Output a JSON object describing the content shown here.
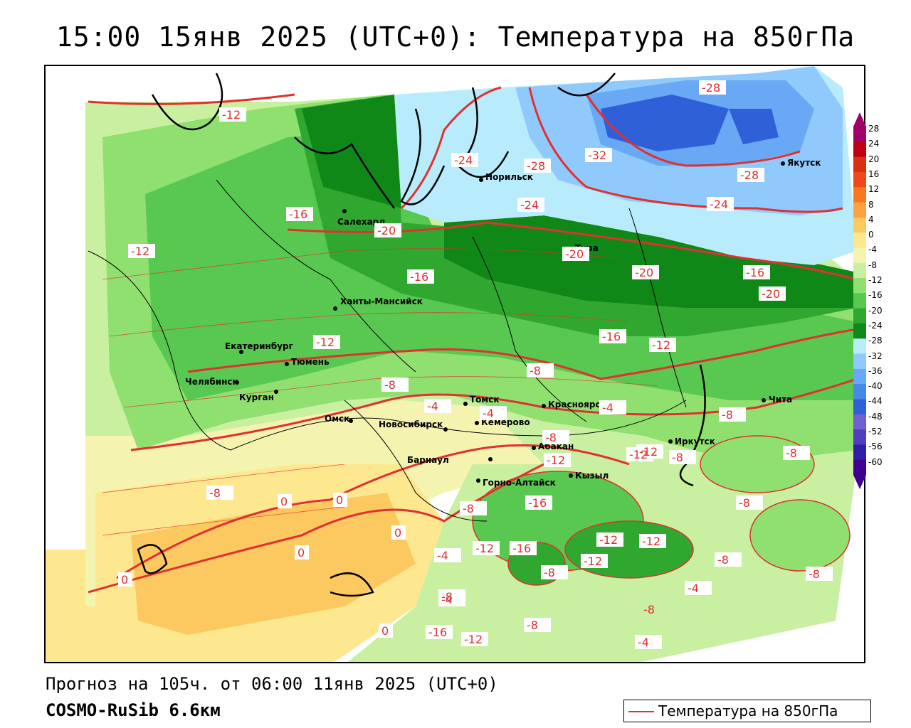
{
  "title": "15:00 15янв 2025 (UTC+0): Температура на 850гПа",
  "footer": {
    "forecast": "Прогноз на 105ч. от 06:00 11янв 2025 (UTC+0)",
    "model": "COSMO-RuSib 6.6км"
  },
  "legend": {
    "label": "Температура на 850гПа",
    "line_color": "#e03030"
  },
  "colorbar": {
    "ticks": [
      "28",
      "24",
      "20",
      "16",
      "12",
      "8",
      "4",
      "0",
      "-4",
      "-8",
      "-12",
      "-16",
      "-20",
      "-24",
      "-28",
      "-32",
      "-36",
      "-40",
      "-44",
      "-48",
      "-52",
      "-56",
      "-60"
    ],
    "colors": [
      "#a0006a",
      "#c00010",
      "#d83010",
      "#f04818",
      "#f87820",
      "#fca040",
      "#fcc860",
      "#fde890",
      "#f4f4b0",
      "#c8f0a0",
      "#90e070",
      "#58c850",
      "#30a830",
      "#108818",
      "#b8ecfc",
      "#90cafc",
      "#68a8f4",
      "#4888e8",
      "#3060d8",
      "#7060d0",
      "#5040c0",
      "#3020a8",
      "#400090"
    ]
  },
  "cities": [
    {
      "name": "Норильск"
    },
    {
      "name": "Якутск"
    },
    {
      "name": "Салехард"
    },
    {
      "name": "Тура"
    },
    {
      "name": "Ханты-Мансийск"
    },
    {
      "name": "Екатеринбург"
    },
    {
      "name": "Тюмень"
    },
    {
      "name": "Челябинск"
    },
    {
      "name": "Курган"
    },
    {
      "name": "Омск"
    },
    {
      "name": "Новосибирск"
    },
    {
      "name": "Томск"
    },
    {
      "name": "Кемерово"
    },
    {
      "name": "Красноярск"
    },
    {
      "name": "Абакан"
    },
    {
      "name": "Барнаул"
    },
    {
      "name": "Горно-Алтайск"
    },
    {
      "name": "Кызыл"
    },
    {
      "name": "Иркутск"
    },
    {
      "name": "Чита"
    }
  ],
  "contour_labels": [
    "-28",
    "-32",
    "-28",
    "-24",
    "-24",
    "-28",
    "-24",
    "-20",
    "-20",
    "-20",
    "-16",
    "-16",
    "-20",
    "-16",
    "-16",
    "-12",
    "-12",
    "-12",
    "-12",
    "-8",
    "-8",
    "-4",
    "-4",
    "-8",
    "-12",
    "-12",
    "-16",
    "-12",
    "-16",
    "-12",
    "-8",
    "-8",
    "-4",
    "0",
    "0",
    "0",
    "0",
    "-4",
    "-8",
    "-4",
    "-8",
    "-8",
    "-12",
    "-8",
    "-8",
    "-12",
    "-12",
    "-16",
    "-12",
    "-8",
    "-4",
    "-8",
    "-8",
    "-4",
    "-8",
    "-8",
    "0",
    "0"
  ]
}
